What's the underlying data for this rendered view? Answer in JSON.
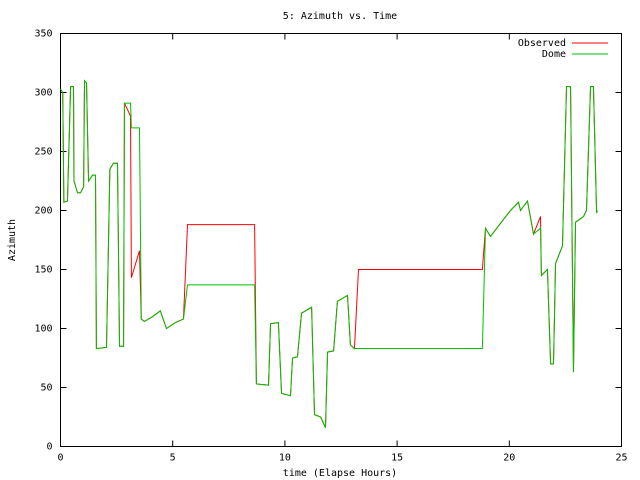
{
  "chart_data": {
    "type": "line",
    "title": "5: Azimuth vs. Time",
    "x_label": "time (Elapse Hours)",
    "y_label": "Azimuth",
    "x": [
      0,
      0.1,
      0.15,
      0.31,
      0.45,
      0.58,
      0.6,
      0.76,
      0.89,
      1.03,
      1.07,
      1.16,
      1.25,
      1.43,
      1.56,
      1.6,
      2.05,
      2.2,
      2.36,
      2.54,
      2.63,
      2.81,
      2.85,
      3.12,
      3.16,
      3.52,
      3.6,
      3.74,
      4.1,
      4.45,
      4.72,
      5.12,
      5.48,
      5.66,
      8.65,
      8.73,
      9.27,
      9.36,
      9.71,
      9.85,
      10.25,
      10.34,
      10.56,
      10.74,
      11.19,
      11.32,
      11.59,
      11.81,
      11.9,
      12.17,
      12.34,
      12.79,
      12.92,
      13.1,
      13.28,
      18.8,
      18.94,
      19.16,
      20.05,
      20.41,
      20.5,
      20.81,
      21.08,
      21.39,
      21.43,
      21.7,
      21.84,
      21.97,
      22.06,
      22.37,
      22.55,
      22.73,
      22.86,
      22.95,
      23.31,
      23.44,
      23.62,
      23.75,
      23.89,
      23.93
    ],
    "series": [
      {
        "name": "Observed",
        "color": "#ff0000",
        "values": [
          303,
          300,
          207,
          208,
          305,
          305,
          225,
          215,
          215,
          220,
          310,
          308,
          225,
          230,
          230,
          83,
          84,
          235,
          240,
          240,
          85,
          85,
          291,
          280,
          143,
          166,
          108,
          106,
          110,
          115,
          100,
          105,
          108,
          188,
          188,
          53,
          52,
          104,
          105,
          45,
          43,
          75,
          76,
          113,
          118,
          27,
          25,
          16,
          80,
          81,
          123,
          128,
          86,
          83,
          150,
          150,
          185,
          178,
          200,
          207,
          200,
          208,
          180,
          195,
          145,
          150,
          70,
          70,
          155,
          170,
          305,
          305,
          63,
          190,
          195,
          200,
          305,
          305,
          198,
          200
        ]
      },
      {
        "name": "Dome",
        "color": "#00c000",
        "values": [
          303,
          300,
          207,
          208,
          305,
          305,
          225,
          215,
          215,
          220,
          310,
          308,
          225,
          230,
          230,
          83,
          84,
          235,
          240,
          240,
          85,
          85,
          291,
          291,
          270,
          270,
          108,
          106,
          110,
          115,
          100,
          105,
          108,
          137,
          137,
          53,
          52,
          104,
          105,
          45,
          43,
          75,
          76,
          113,
          118,
          27,
          25,
          16,
          80,
          81,
          123,
          128,
          86,
          83,
          83,
          83,
          185,
          178,
          200,
          207,
          200,
          208,
          180,
          185,
          145,
          150,
          70,
          70,
          155,
          170,
          305,
          305,
          63,
          190,
          195,
          200,
          305,
          305,
          198,
          200
        ]
      }
    ],
    "xlim": [
      0,
      25
    ],
    "xticks": [
      0,
      5,
      10,
      15,
      20,
      25
    ],
    "ylim": [
      0,
      350
    ],
    "yticks": [
      0,
      50,
      100,
      150,
      200,
      250,
      300,
      350
    ],
    "legend": "top-right",
    "grid": false
  }
}
